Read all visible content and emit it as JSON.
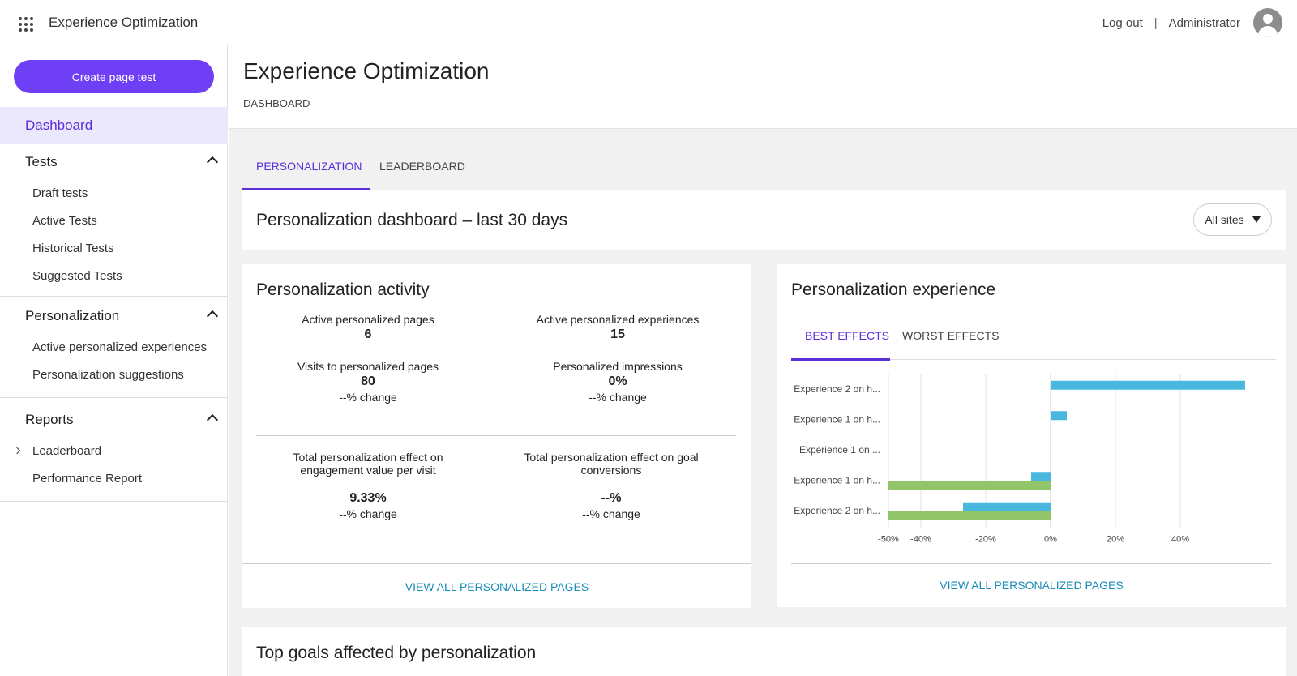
{
  "topbar": {
    "app_title": "Experience Optimization",
    "logout": "Log out",
    "separator": "|",
    "user": "Administrator"
  },
  "sidebar": {
    "create_button": "Create page test",
    "dashboard": "Dashboard",
    "sections": [
      {
        "title": "Tests",
        "items": [
          "Draft tests",
          "Active Tests",
          "Historical Tests",
          "Suggested Tests"
        ]
      },
      {
        "title": "Personalization",
        "items": [
          "Active personalized experiences",
          "Personalization suggestions"
        ]
      },
      {
        "title": "Reports",
        "items": [
          "Leaderboard",
          "Performance Report"
        ]
      }
    ]
  },
  "page": {
    "title": "Experience Optimization",
    "breadcrumb": "DASHBOARD",
    "tabs": [
      "PERSONALIZATION",
      "LEADERBOARD"
    ],
    "banner_title": "Personalization dashboard – last 30 days",
    "site_filter": "All sites"
  },
  "activity": {
    "title": "Personalization activity",
    "metrics": [
      {
        "label": "Active personalized pages",
        "value": "6",
        "change": ""
      },
      {
        "label": "Active personalized experiences",
        "value": "15",
        "change": ""
      },
      {
        "label": "Visits to personalized pages",
        "value": "80",
        "change": "--% change"
      },
      {
        "label": "Personalized impressions",
        "value": "0%",
        "change": "--% change"
      }
    ],
    "effects": [
      {
        "label_line1": "Total personalization effect on",
        "label_line2": "engagement value per visit",
        "value": "9.33%",
        "change": "--% change"
      },
      {
        "label_line1": "Total personalization effect on goal",
        "label_line2": "conversions",
        "value": "--%",
        "change": "--% change"
      }
    ],
    "link": "VIEW ALL PERSONALIZED PAGES"
  },
  "experience": {
    "title": "Personalization experience",
    "tabs": [
      "BEST EFFECTS",
      "WORST EFFECTS"
    ],
    "link": "VIEW ALL PERSONALIZED PAGES"
  },
  "goals": {
    "title": "Top goals affected by personalization"
  },
  "colors": {
    "accent": "#6e3ff5",
    "link": "#1a8cb8",
    "series_blue": "#4ab8de",
    "series_green": "#92c46a"
  },
  "chart_data": {
    "type": "bar",
    "orientation": "horizontal",
    "categories": [
      "Experience 2 on h...",
      "Experience 1 on h...",
      "Experience 1 on ...",
      "Experience 1 on h...",
      "Experience 2 on h..."
    ],
    "series": [
      {
        "color": "#4ab8de",
        "values": [
          60,
          5,
          0,
          -6,
          -27
        ]
      },
      {
        "color": "#92c46a",
        "values": [
          0,
          0,
          0,
          -50,
          -50
        ]
      }
    ],
    "x_ticks": [
      -50,
      -40,
      -20,
      0,
      20,
      40
    ],
    "x_tick_labels": [
      "-50%",
      "-40%",
      "-20%",
      "0%",
      "20%",
      "40%"
    ],
    "xlim": [
      -50,
      60
    ],
    "grid": true
  }
}
